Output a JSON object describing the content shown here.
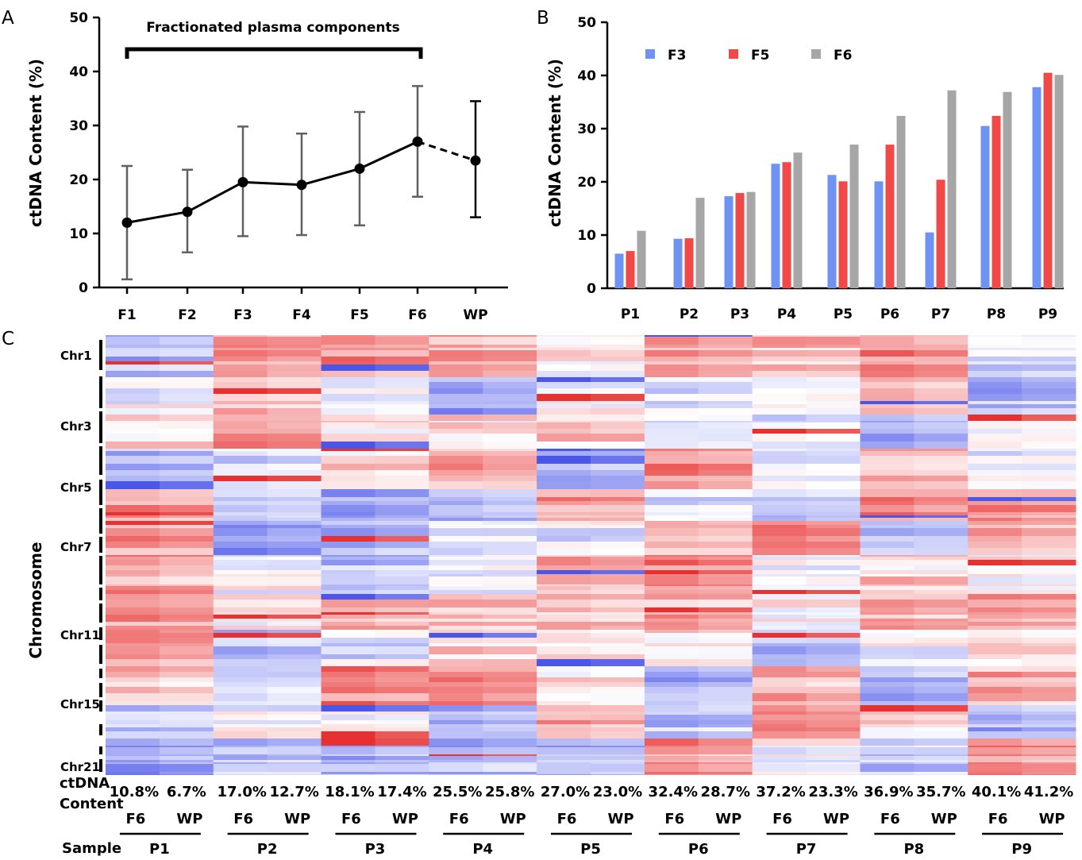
{
  "panel_labels": {
    "a": "A",
    "b": "B",
    "c": "C"
  },
  "colors": {
    "f3": "#6f93f2",
    "f5": "#f24848",
    "f6": "#a6a6a6",
    "line": "#000000",
    "error": "#606060",
    "heat_red": "#e83030",
    "heat_blue": "#4a56e8"
  },
  "chart_data": [
    {
      "id": "A",
      "type": "line",
      "title": "",
      "bracket_label": "Fractionated plasma components",
      "xlabel": "",
      "ylabel": "ctDNA Content (%)",
      "categories": [
        "F1",
        "F2",
        "F3",
        "F4",
        "F5",
        "F6",
        "WP"
      ],
      "values": [
        12,
        14,
        19.5,
        19,
        22,
        27,
        23.5
      ],
      "err_high": [
        22.5,
        21.8,
        29.8,
        28.5,
        32.5,
        37.3,
        34.5
      ],
      "err_low": [
        1.5,
        6.5,
        9.5,
        9.7,
        11.5,
        16.8,
        13
      ],
      "dashed_last_segment": true,
      "ylim": [
        0,
        50
      ],
      "yticks": [
        0,
        10,
        20,
        30,
        40,
        50
      ]
    },
    {
      "id": "B",
      "type": "bar",
      "xlabel": "",
      "ylabel": "ctDNA Content (%)",
      "categories": [
        "P1",
        "P2",
        "P3",
        "P4",
        "P5",
        "P6",
        "P7",
        "P8",
        "P9"
      ],
      "series": [
        {
          "name": "F3",
          "values": [
            6.5,
            9.3,
            17.3,
            23.4,
            21.3,
            20.1,
            10.5,
            30.5,
            37.8
          ]
        },
        {
          "name": "F5",
          "values": [
            7.0,
            9.4,
            17.9,
            23.7,
            20.1,
            27.0,
            20.4,
            32.4,
            40.5
          ]
        },
        {
          "name": "F6",
          "values": [
            10.8,
            17.0,
            18.1,
            25.5,
            27.0,
            32.4,
            37.2,
            36.9,
            40.1
          ]
        }
      ],
      "ylim": [
        0,
        50
      ],
      "yticks": [
        0,
        10,
        20,
        30,
        40,
        50
      ],
      "legend": "top-left"
    },
    {
      "id": "C",
      "type": "heatmap",
      "ylabel": "Chromosome",
      "chromosome_labels": [
        "Chr1",
        "Chr3",
        "Chr5",
        "Chr7",
        "Chr11",
        "Chr15",
        "Chr21"
      ],
      "row_label_ctdna": [
        "ctDNA",
        "Content"
      ],
      "row_label_sample": "Sample",
      "column_types": [
        "F6",
        "WP"
      ],
      "samples": [
        {
          "name": "P1",
          "f6": "10.8%",
          "wp": "6.7%"
        },
        {
          "name": "P2",
          "f6": "17.0%",
          "wp": "12.7%"
        },
        {
          "name": "P3",
          "f6": "18.1%",
          "wp": "17.4%"
        },
        {
          "name": "P4",
          "f6": "25.5%",
          "wp": "25.8%"
        },
        {
          "name": "P5",
          "f6": "27.0%",
          "wp": "23.0%"
        },
        {
          "name": "P6",
          "f6": "32.4%",
          "wp": "28.7%"
        },
        {
          "name": "P7",
          "f6": "37.2%",
          "wp": "23.3%"
        },
        {
          "name": "P8",
          "f6": "36.9%",
          "wp": "35.7%"
        },
        {
          "name": "P9",
          "f6": "40.1%",
          "wp": "41.2%"
        }
      ]
    }
  ]
}
